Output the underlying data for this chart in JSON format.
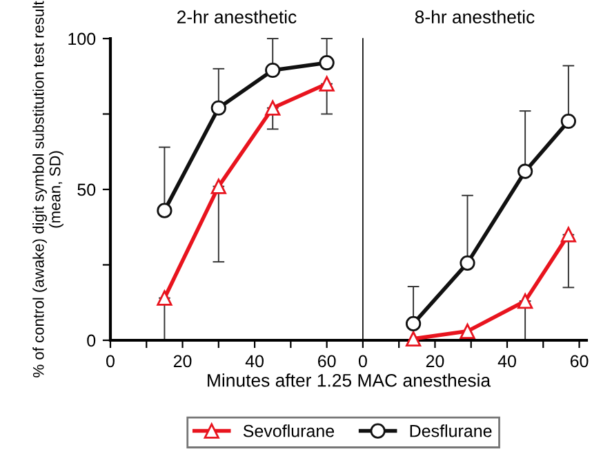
{
  "chart_data": [
    {
      "type": "line",
      "title": "2-hr anesthetic",
      "ylabel": "% of control (awake) digit symbol substitution test result (mean, SD)",
      "xlabel": "Minutes after 1.25 MAC anesthesia",
      "xlim": [
        0,
        70
      ],
      "xticks": [
        0,
        {
          "value": 10,
          "label": null
        },
        20,
        {
          "value": 30,
          "label": null
        },
        40,
        {
          "value": 50,
          "label": null
        },
        60
      ],
      "ylim": [
        0,
        100
      ],
      "yticks": [
        0,
        {
          "value": 25,
          "label": null
        },
        50,
        {
          "value": 75,
          "label": null
        },
        100
      ],
      "grid": false,
      "legend": "bottom",
      "series": [
        {
          "name": "Sevoflurane",
          "color": "#e8141e",
          "marker": "triangle",
          "x": [
            15,
            30,
            45,
            60
          ],
          "values": [
            14,
            51,
            77,
            85
          ],
          "errors": [
            [
              0,
              14
            ],
            [
              26,
              51
            ],
            [
              70,
              77
            ],
            [
              75,
              85
            ]
          ]
        },
        {
          "name": "Desflurane",
          "color": "#111111",
          "marker": "circle",
          "x": [
            15,
            30,
            45,
            60
          ],
          "values": [
            43,
            77,
            89.5,
            92
          ],
          "errors": [
            [
              43,
              64
            ],
            [
              77,
              90
            ],
            [
              89.5,
              100
            ],
            [
              92,
              100
            ]
          ]
        }
      ]
    },
    {
      "type": "line",
      "title": "8-hr anesthetic",
      "xlim": [
        0,
        62
      ],
      "xticks": [
        0,
        {
          "value": 10,
          "label": null
        },
        20,
        {
          "value": 30,
          "label": null
        },
        40,
        {
          "value": 50,
          "label": null
        },
        60
      ],
      "ylim": [
        0,
        100
      ],
      "tick_labels": "x",
      "grid": false,
      "legend": "bottom",
      "series": [
        {
          "name": "Sevoflurane",
          "color": "#e8141e",
          "marker": "triangle",
          "x": [
            14,
            29,
            45,
            57
          ],
          "values": [
            0.5,
            3,
            13,
            35
          ],
          "errors": [
            null,
            null,
            [
              0,
              13
            ],
            [
              17.5,
              35
            ]
          ]
        },
        {
          "name": "Desflurane",
          "color": "#111111",
          "marker": "circle",
          "x": [
            14,
            29,
            45,
            57
          ],
          "values": [
            5.5,
            25.6,
            56,
            72.6
          ],
          "errors": [
            [
              5.5,
              17.8
            ],
            [
              25.6,
              48
            ],
            [
              56,
              76
            ],
            [
              72.6,
              91
            ]
          ]
        }
      ]
    }
  ]
}
